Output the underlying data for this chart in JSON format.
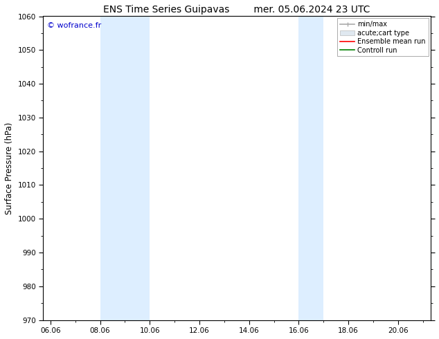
{
  "title_left": "ENS Time Series Guipavas",
  "title_right": "mer. 05.06.2024 23 UTC",
  "ylabel": "Surface Pressure (hPa)",
  "ylim": [
    970,
    1060
  ],
  "yticks": [
    970,
    980,
    990,
    1000,
    1010,
    1020,
    1030,
    1040,
    1050,
    1060
  ],
  "xticks": [
    6.06,
    8.06,
    10.06,
    12.06,
    14.06,
    16.06,
    18.06,
    20.06
  ],
  "xtick_labels": [
    "06.06",
    "08.06",
    "10.06",
    "12.06",
    "14.06",
    "16.06",
    "18.06",
    "20.06"
  ],
  "xlim": [
    5.76,
    21.36
  ],
  "shaded_bands": [
    {
      "xmin": 8.06,
      "xmax": 10.06
    },
    {
      "xmin": 16.06,
      "xmax": 17.06
    }
  ],
  "shaded_color": "#ddeeff",
  "watermark": "© wofrance.fr",
  "watermark_color": "#0000cc",
  "legend_entries": [
    {
      "label": "min/max",
      "color": "#aaaaaa",
      "lw": 1.2,
      "style": "minmax"
    },
    {
      "label": "acute;cart type",
      "color": "#cccccc",
      "lw": 5,
      "style": "band"
    },
    {
      "label": "Ensemble mean run",
      "color": "#ff0000",
      "lw": 1.2,
      "style": "line"
    },
    {
      "label": "Controll run",
      "color": "#008000",
      "lw": 1.2,
      "style": "line"
    }
  ],
  "bg_color": "#ffffff",
  "title_fontsize": 10,
  "tick_fontsize": 7.5,
  "label_fontsize": 8.5,
  "watermark_fontsize": 8
}
